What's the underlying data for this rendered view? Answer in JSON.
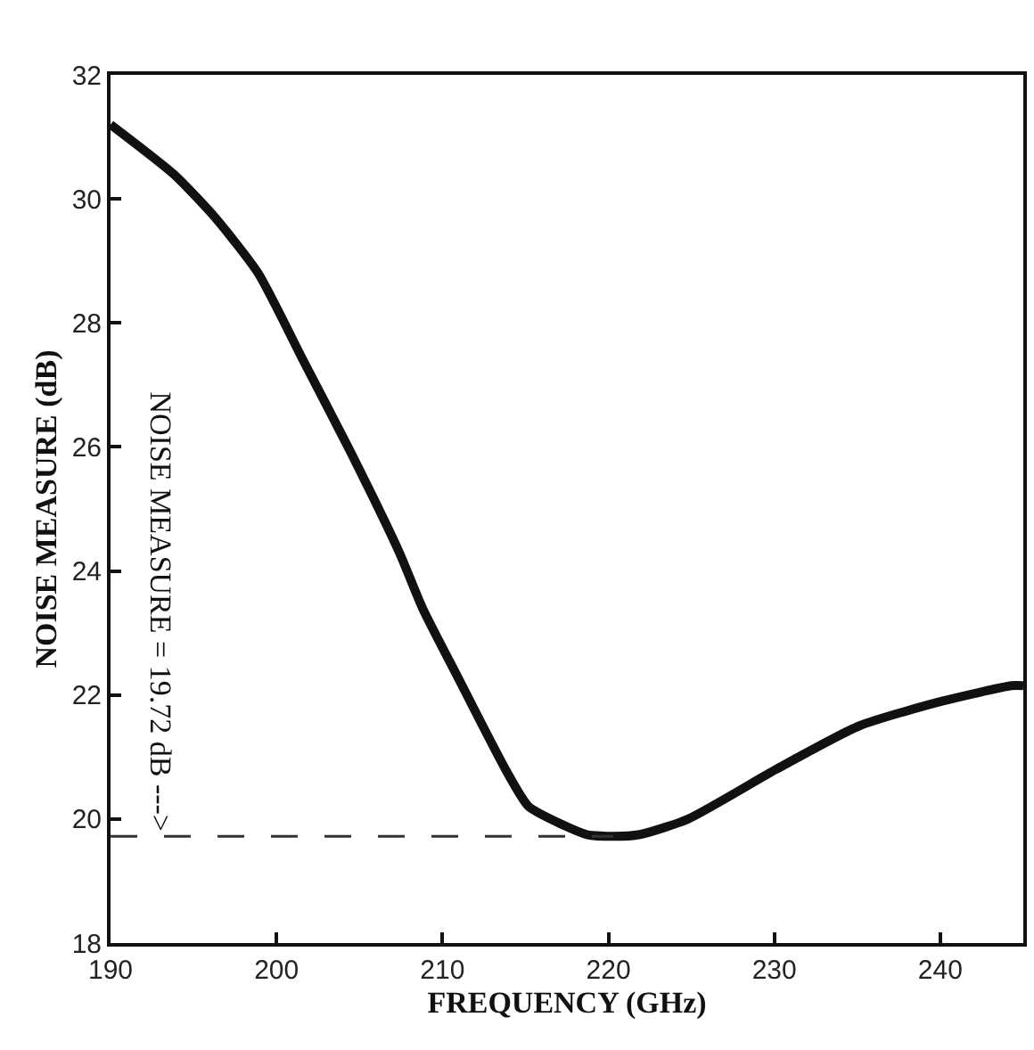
{
  "chart_data": {
    "type": "line",
    "xlabel": "FREQUENCY (GHz)",
    "ylabel": "NOISE MEASURE (dB)",
    "xlim": [
      190,
      245
    ],
    "xticks": [
      190,
      200,
      210,
      220,
      230,
      240
    ],
    "ylim": [
      18,
      32
    ],
    "yticks": [
      18,
      20,
      22,
      24,
      26,
      28,
      30,
      32
    ],
    "marker": "none",
    "line_style": "solid",
    "series": [
      {
        "color": "#111111",
        "x": [
          190,
          193.8,
          196.3,
          198.9,
          201.6,
          204.5,
          207.4,
          208.8,
          210.9,
          213.8,
          215.2,
          217.3,
          218.7,
          220.3,
          221.9,
          224.8,
          230.1,
          235.1,
          240.1,
          244.3,
          245
        ],
        "values": [
          31.2,
          30.4,
          29.7,
          28.8,
          27.4,
          25.9,
          24.3,
          23.4,
          22.3,
          20.8,
          20.2,
          19.9,
          19.75,
          19.72,
          19.75,
          20.0,
          20.8,
          21.5,
          21.9,
          22.15,
          22.15
        ]
      }
    ],
    "ref_lines": [
      {
        "axis": "y",
        "value": 19.72,
        "color": "#333333",
        "line_style": "dashed"
      }
    ],
    "annotations": [
      {
        "text": "NOISE MEASURE = 19.72 dB --->",
        "x": 193,
        "y": 19.72
      }
    ]
  }
}
